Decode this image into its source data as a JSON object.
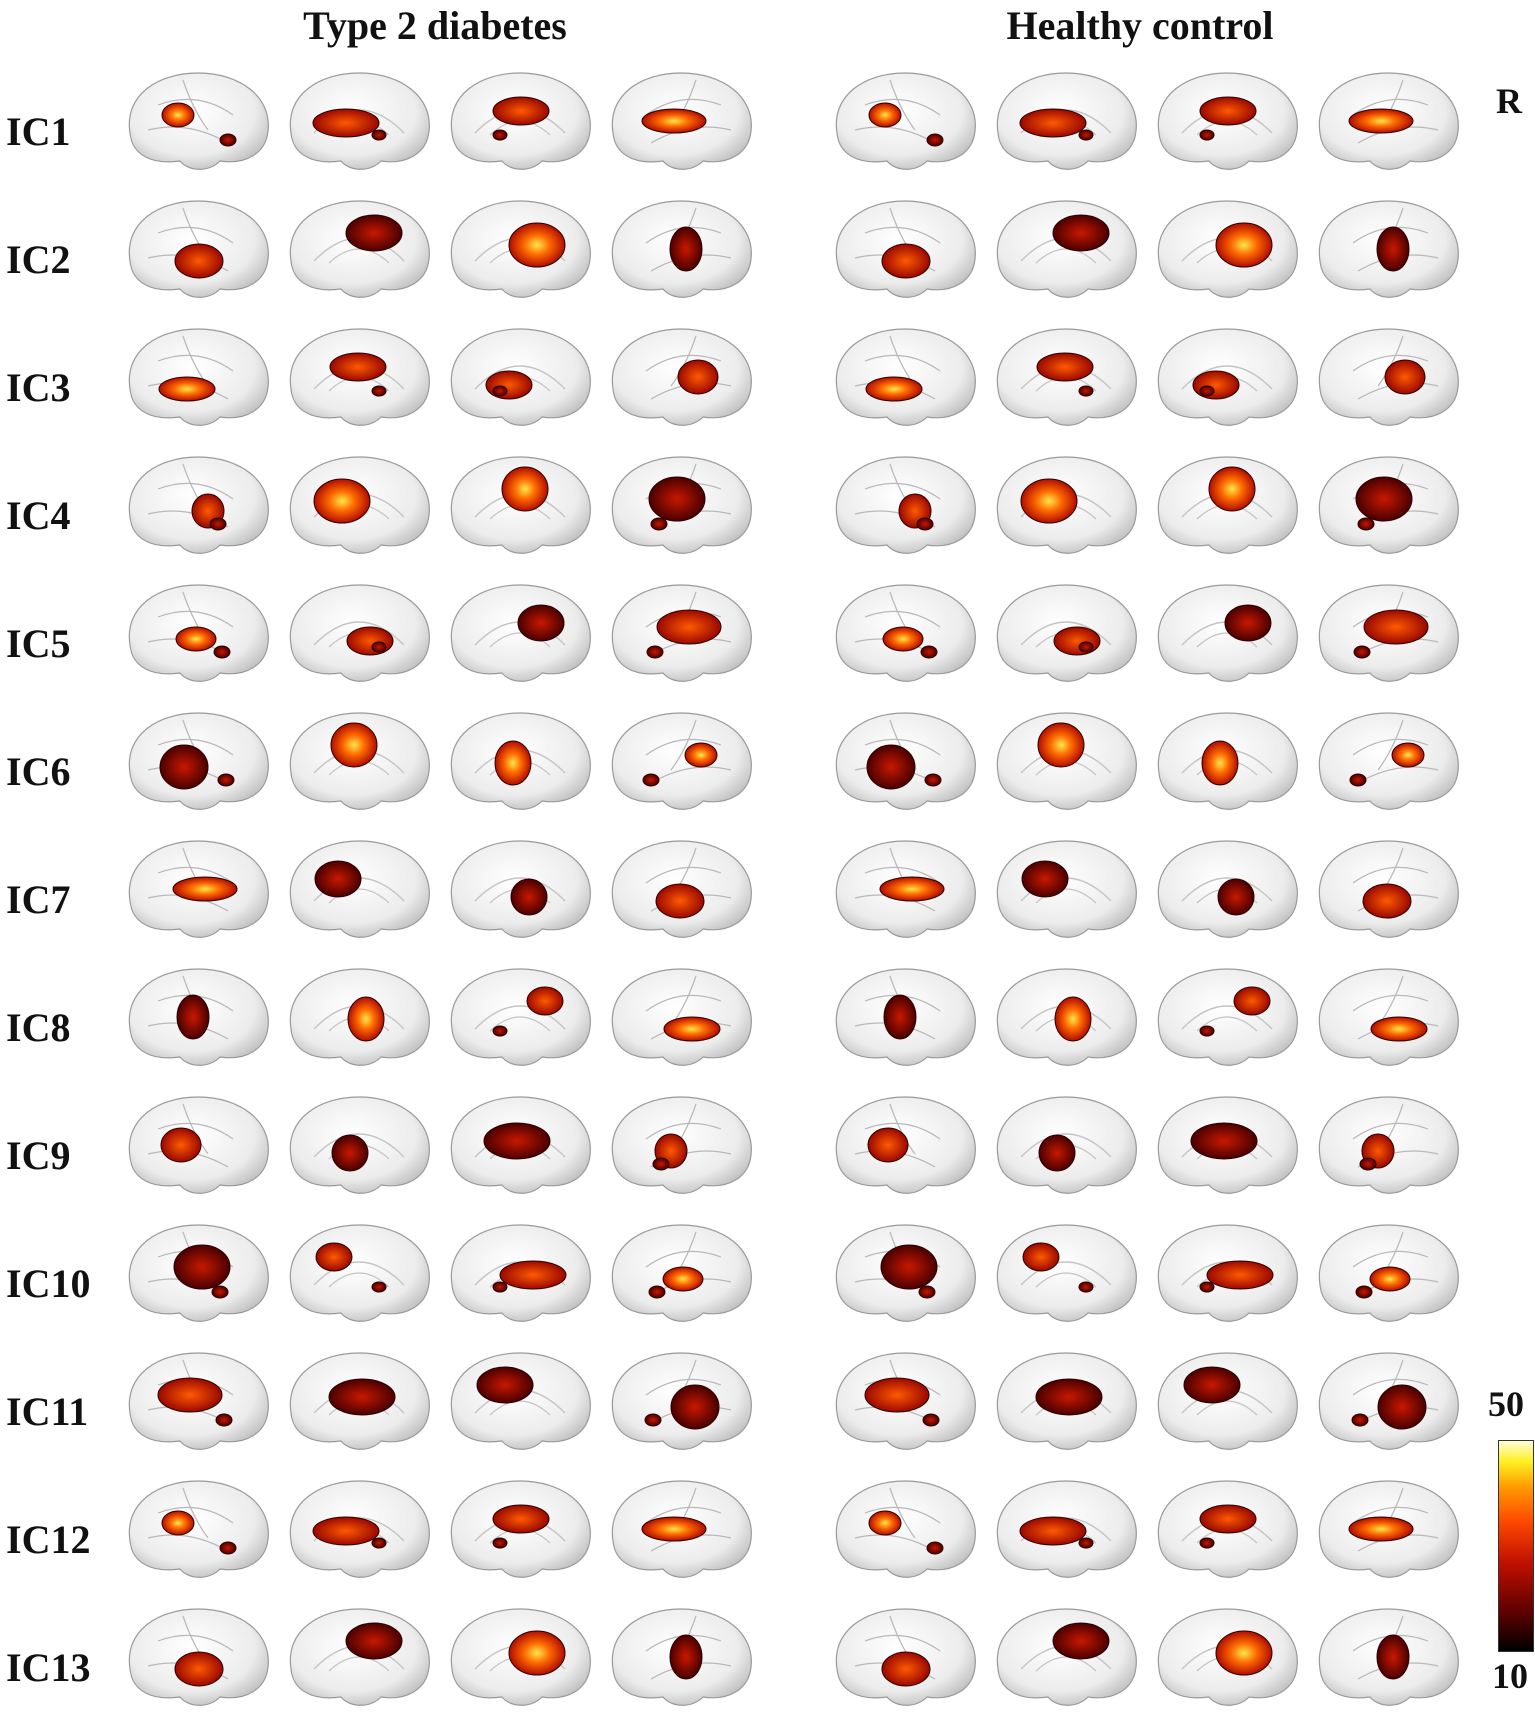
{
  "groups": [
    "Type 2 diabetes",
    "Healthy control"
  ],
  "side_label": "R",
  "components": [
    "IC1",
    "IC2",
    "IC3",
    "IC4",
    "IC5",
    "IC6",
    "IC7",
    "IC8",
    "IC9",
    "IC10",
    "IC11",
    "IC12",
    "IC13"
  ],
  "views_per_group": [
    "left-lateral",
    "left-medial",
    "right-medial",
    "right-lateral"
  ],
  "colorbar": {
    "max": "50",
    "min": "10",
    "colors": [
      "#000000",
      "#5a0000",
      "#c01000",
      "#ff4a00",
      "#ff9a00",
      "#ffef20",
      "#ffffd8"
    ]
  }
}
